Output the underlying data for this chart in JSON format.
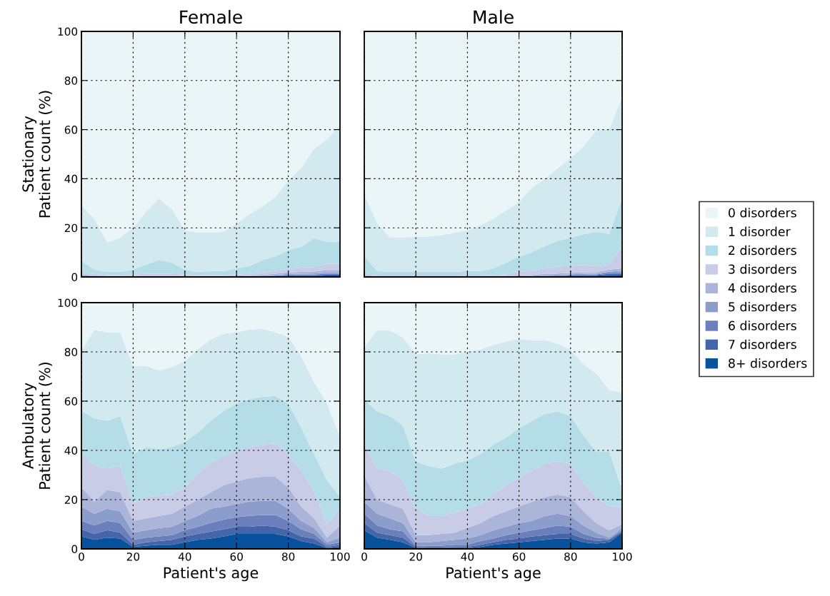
{
  "chart_data": [
    {
      "type": "area",
      "stacked": true,
      "title": "Female",
      "ylabel": "Stationary\nPatient count (%)",
      "tick_labels": "y",
      "grid": true,
      "legend": "right",
      "x": [
        0,
        5,
        10,
        15,
        20,
        25,
        30,
        35,
        40,
        45,
        50,
        55,
        60,
        65,
        70,
        75,
        80,
        85,
        90,
        95,
        100
      ],
      "xlim": [
        0,
        100
      ],
      "xticks": [
        0,
        20,
        40,
        60,
        80,
        100
      ],
      "ylim": [
        0,
        100
      ],
      "yticks": [
        0,
        20,
        40,
        60,
        80,
        100
      ],
      "series": [
        {
          "name": "8+ disorders",
          "color": "#08519c",
          "values": [
            0.3,
            0.1,
            0,
            0,
            0,
            0,
            0,
            0,
            0,
            0,
            0,
            0,
            0,
            0,
            0.1,
            0.3,
            0.5,
            0.5,
            0.5,
            0.6,
            0.6
          ]
        },
        {
          "name": "7 disorders",
          "color": "#4466a8",
          "values": [
            0.1,
            0.1,
            0,
            0,
            0,
            0,
            0,
            0,
            0,
            0,
            0,
            0,
            0,
            0.1,
            0.1,
            0.1,
            0.2,
            0.2,
            0.2,
            0.3,
            0.3
          ]
        },
        {
          "name": "6 disorders",
          "color": "#6a7fbb",
          "values": [
            0.1,
            0.1,
            0.1,
            0.1,
            0.1,
            0.1,
            0.1,
            0.1,
            0.1,
            0.1,
            0.1,
            0.1,
            0.1,
            0.1,
            0.1,
            0.2,
            0.2,
            0.3,
            0.3,
            0.4,
            0.4
          ]
        },
        {
          "name": "5 disorders",
          "color": "#8c9dcc",
          "values": [
            0.2,
            0.1,
            0.1,
            0.1,
            0.1,
            0.1,
            0.1,
            0.1,
            0.1,
            0.1,
            0.1,
            0.1,
            0.1,
            0.2,
            0.2,
            0.2,
            0.3,
            0.3,
            0.4,
            0.5,
            0.5
          ]
        },
        {
          "name": "4 disorders",
          "color": "#abb4d9",
          "values": [
            0.3,
            0.2,
            0.2,
            0.2,
            0.2,
            0.2,
            0.2,
            0.2,
            0.2,
            0.2,
            0.2,
            0.2,
            0.3,
            0.3,
            0.4,
            0.5,
            0.6,
            0.7,
            0.8,
            1,
            1
          ]
        },
        {
          "name": "3 disorders",
          "color": "#c9cce6",
          "values": [
            0.7,
            0.6,
            0.4,
            0.4,
            0.6,
            0.8,
            0.8,
            0.8,
            0.6,
            0.4,
            0.4,
            0.4,
            0.5,
            0.5,
            0.9,
            1.1,
            1.5,
            1.8,
            1.8,
            2.5,
            2.5
          ]
        },
        {
          "name": "2 disorders",
          "color": "#b4dde8",
          "values": [
            4.8,
            1.8,
            1.2,
            1.2,
            2,
            3.8,
            5.6,
            4.6,
            2,
            1.2,
            1.6,
            1.6,
            2.4,
            3.2,
            5,
            6,
            7.6,
            8.5,
            11.7,
            9,
            9
          ]
        },
        {
          "name": "1 disorder",
          "color": "#d1e9ef",
          "values": [
            22.7,
            20.7,
            12,
            14,
            17,
            21.6,
            25.2,
            21.8,
            16,
            16,
            15.6,
            16,
            18.4,
            21.2,
            21.8,
            24.2,
            28.4,
            32,
            36.5,
            41.7,
            47.5
          ]
        },
        {
          "name": "0 disorders",
          "color": "#e9f5f7",
          "values": [
            70.8,
            76.3,
            86,
            84,
            80,
            73.4,
            68,
            72.4,
            81,
            82,
            82,
            81.6,
            78.2,
            74.4,
            71.4,
            67.4,
            60.7,
            55.7,
            47.8,
            44,
            38.2
          ]
        }
      ]
    },
    {
      "type": "area",
      "stacked": true,
      "title": "Male",
      "tick_labels": false,
      "grid": true,
      "x": [
        0,
        5,
        10,
        15,
        20,
        25,
        30,
        35,
        40,
        45,
        50,
        55,
        60,
        65,
        70,
        75,
        80,
        85,
        90,
        95,
        100
      ],
      "xlim": [
        0,
        100
      ],
      "xticks": [
        0,
        20,
        40,
        60,
        80,
        100
      ],
      "ylim": [
        0,
        100
      ],
      "yticks": [
        0,
        20,
        40,
        60,
        80,
        100
      ],
      "series": [
        {
          "color": "#08519c",
          "values": [
            0.3,
            0,
            0,
            0,
            0,
            0,
            0,
            0,
            0,
            0,
            0,
            0,
            0,
            0,
            0.1,
            0.3,
            0.5,
            0.5,
            0.5,
            0.8,
            0.8
          ]
        },
        {
          "color": "#4466a8",
          "values": [
            0.1,
            0,
            0,
            0,
            0,
            0,
            0,
            0,
            0,
            0,
            0,
            0,
            0,
            0.1,
            0.1,
            0.1,
            0.1,
            0.2,
            0.2,
            0.5,
            0.5
          ]
        },
        {
          "color": "#6a7fbb",
          "values": [
            0.1,
            0.1,
            0.1,
            0.1,
            0.1,
            0.1,
            0.1,
            0.1,
            0.1,
            0.1,
            0.1,
            0.1,
            0.1,
            0.1,
            0.2,
            0.2,
            0.2,
            0.2,
            0.3,
            0.5,
            0.6
          ]
        },
        {
          "color": "#8c9dcc",
          "values": [
            0.1,
            0.1,
            0.1,
            0.1,
            0.1,
            0.1,
            0.1,
            0.1,
            0.1,
            0.1,
            0.1,
            0.1,
            0.2,
            0.2,
            0.3,
            0.3,
            0.3,
            0.3,
            0.3,
            0.4,
            0.6
          ]
        },
        {
          "color": "#abb4d9",
          "values": [
            0.2,
            0.1,
            0.1,
            0.1,
            0.1,
            0.1,
            0.1,
            0.1,
            0.1,
            0.1,
            0.1,
            0.2,
            0.3,
            0.4,
            0.5,
            0.5,
            0.6,
            0.7,
            0.6,
            0.8,
            1
          ]
        },
        {
          "color": "#c9cce6",
          "values": [
            0.9,
            0.3,
            0.3,
            0.3,
            0.3,
            0.3,
            0.3,
            0.3,
            0.3,
            0.3,
            0.5,
            0.6,
            1.4,
            1.7,
            2.3,
            2.8,
            2.7,
            3,
            2.4,
            2,
            9
          ]
        },
        {
          "color": "#b4dde8",
          "values": [
            6.7,
            1.8,
            1.4,
            1.4,
            1.4,
            1.4,
            1.4,
            1.4,
            1.8,
            1.8,
            2.6,
            4.8,
            6.2,
            7.5,
            9.1,
            10.5,
            11.5,
            12.5,
            14,
            12.5,
            19.5
          ]
        },
        {
          "color": "#d1e9ef",
          "values": [
            25.2,
            19.4,
            14,
            14,
            14.5,
            14.5,
            15,
            16,
            16.6,
            18.6,
            20.3,
            21.2,
            22.3,
            26.3,
            27.4,
            29.5,
            32.5,
            35.7,
            41.5,
            42.5,
            41.5
          ]
        },
        {
          "color": "#e9f5f7",
          "values": [
            66.4,
            78.2,
            84,
            84,
            83.5,
            83.5,
            83,
            82,
            81,
            79,
            76.3,
            73,
            69.5,
            63.7,
            60,
            55.8,
            51.6,
            46.9,
            40.2,
            40,
            26.5
          ]
        }
      ]
    },
    {
      "type": "area",
      "stacked": true,
      "ylabel": "Ambulatory\nPatient count (%)",
      "xlabel": "Patient's age",
      "grid": true,
      "x": [
        0,
        5,
        10,
        15,
        20,
        25,
        30,
        35,
        40,
        45,
        50,
        55,
        60,
        65,
        70,
        75,
        80,
        85,
        90,
        95,
        100
      ],
      "xlim": [
        0,
        100
      ],
      "xticks": [
        0,
        20,
        40,
        60,
        80,
        100
      ],
      "ylim": [
        0,
        100
      ],
      "yticks": [
        0,
        20,
        40,
        60,
        80,
        100
      ],
      "series": [
        {
          "color": "#08519c",
          "values": [
            5.1,
            3.7,
            4.6,
            4.2,
            0.8,
            1.3,
            1.7,
            1.7,
            2.7,
            3.7,
            4.2,
            5.1,
            6.1,
            6.1,
            6.1,
            6.1,
            5.1,
            3.2,
            2.2,
            0.3,
            0.8
          ]
        },
        {
          "color": "#4466a8",
          "values": [
            2.9,
            2.4,
            3,
            2.4,
            0.9,
            1.4,
            1.5,
            2,
            2.4,
            2.4,
            2.8,
            2.9,
            2.9,
            2.9,
            3.4,
            2.9,
            2.5,
            1.9,
            2,
            0.5,
            0.9
          ]
        },
        {
          "color": "#6a7fbb",
          "values": [
            3.4,
            3.4,
            3.8,
            3.9,
            2,
            1.9,
            1.9,
            1.9,
            2.5,
            2.9,
            3.5,
            3.9,
            3.9,
            4.4,
            4.3,
            4.8,
            3.8,
            2.9,
            1.9,
            0.9,
            1
          ]
        },
        {
          "color": "#8c9dcc",
          "values": [
            5.8,
            4.8,
            4.9,
            4.8,
            2.9,
            3,
            3.4,
            3.4,
            3.8,
            4.4,
            5.8,
            5.3,
            5.3,
            5.8,
            5.8,
            5.8,
            4.9,
            3.4,
            2.4,
            1,
            1.9
          ]
        },
        {
          "color": "#abb4d9",
          "values": [
            7.8,
            4.9,
            7.7,
            7.7,
            4.8,
            4.8,
            4.9,
            5.3,
            5.8,
            6.6,
            6.7,
            8.7,
            9.2,
            9.6,
            9.7,
            9.7,
            8.7,
            5.8,
            3.9,
            1.9,
            4.9
          ]
        },
        {
          "color": "#c9cce6",
          "values": [
            14.5,
            14.5,
            8.7,
            10.7,
            7,
            8.6,
            8.2,
            7.7,
            7.8,
            10.8,
            11.7,
            11.7,
            12.1,
            12.6,
            13.1,
            13.5,
            13.5,
            14.6,
            10.8,
            5.1,
            7.2
          ]
        },
        {
          "color": "#b4dde8",
          "values": [
            16.5,
            19.3,
            19.3,
            20.3,
            20.1,
            20.4,
            18.9,
            19.4,
            18.4,
            16.4,
            17.3,
            18.4,
            19.4,
            19.4,
            19.3,
            19.4,
            20.4,
            17.4,
            15.3,
            18.1,
            4.3
          ]
        },
        {
          "color": "#d1e9ef",
          "values": [
            24.6,
            35.9,
            36,
            34,
            35.8,
            32.9,
            31.9,
            32.5,
            32.9,
            33.8,
            33,
            31.4,
            29.1,
            28.2,
            27.7,
            25.8,
            27.1,
            29,
            29.1,
            31.2,
            24.3
          ]
        },
        {
          "color": "#e9f5f7",
          "values": [
            19.4,
            11.1,
            12,
            12,
            25.7,
            25.7,
            27.6,
            26.1,
            23.7,
            19,
            15,
            12.6,
            12,
            11,
            10.6,
            12,
            14,
            21.8,
            32.4,
            41,
            54.7
          ]
        }
      ]
    },
    {
      "type": "area",
      "stacked": true,
      "xlabel": "Patient's age",
      "tick_labels": "x",
      "grid": true,
      "x": [
        0,
        5,
        10,
        15,
        20,
        25,
        30,
        35,
        40,
        45,
        50,
        55,
        60,
        65,
        70,
        75,
        80,
        85,
        90,
        95,
        100
      ],
      "xlim": [
        0,
        100
      ],
      "xticks": [
        0,
        20,
        40,
        60,
        80,
        100
      ],
      "ylim": [
        0,
        100
      ],
      "yticks": [
        0,
        20,
        40,
        60,
        80,
        100
      ],
      "series": [
        {
          "color": "#08519c",
          "values": [
            7.5,
            4.6,
            3.7,
            2.7,
            0.3,
            0.3,
            0.3,
            0.3,
            0.3,
            0.8,
            1.7,
            2.2,
            2.7,
            3.2,
            3.7,
            4.2,
            4.2,
            2.7,
            2.2,
            2.7,
            6.6
          ]
        },
        {
          "color": "#4466a8",
          "values": [
            2.9,
            2,
            1.9,
            1.9,
            0.5,
            0.3,
            0.3,
            0.5,
            0.5,
            0.9,
            1,
            1.5,
            1.5,
            1.9,
            1.9,
            1.9,
            1.9,
            1.5,
            1,
            1,
            0.5
          ]
        },
        {
          "color": "#6a7fbb",
          "values": [
            3.9,
            2.9,
            2.4,
            2.5,
            0.5,
            0.7,
            0.7,
            0.9,
            0.9,
            1.5,
            1.5,
            1.9,
            2.4,
            2.4,
            2.9,
            3.4,
            2.9,
            1.9,
            1.4,
            0.4,
            0.5
          ]
        },
        {
          "color": "#8c9dcc",
          "values": [
            4.8,
            4.8,
            4.4,
            3.3,
            1.4,
            1.4,
            1.9,
            2,
            2.5,
            2.4,
            3.3,
            3.4,
            3.8,
            3.9,
            4.8,
            4.8,
            4.3,
            3.4,
            2,
            0.5,
            0.9
          ]
        },
        {
          "color": "#abb4d9",
          "values": [
            10.6,
            5.7,
            5.7,
            5.8,
            2.9,
            2.9,
            2.9,
            2.9,
            4.3,
            4.8,
            5.8,
            6.3,
            6.8,
            7.7,
            7.7,
            7.7,
            7.7,
            5.8,
            3.8,
            2.9,
            1.5
          ]
        },
        {
          "color": "#c9cce6",
          "values": [
            12.6,
            12.6,
            13.6,
            11.6,
            10.6,
            7.7,
            7.2,
            8.2,
            7.7,
            7.7,
            8.7,
            10.6,
            11.6,
            12.6,
            13.6,
            13.5,
            13.6,
            11.5,
            10.6,
            9.7,
            7.2
          ]
        },
        {
          "color": "#b4dde8",
          "values": [
            18.3,
            23.2,
            22.2,
            22.2,
            19.3,
            20.3,
            19.3,
            19.8,
            19.8,
            20.3,
            20.3,
            19.3,
            20.2,
            20.2,
            20.2,
            20.3,
            19.3,
            19.3,
            18.4,
            22.2,
            6.7
          ]
        },
        {
          "color": "#d1e9ef",
          "values": [
            21.3,
            33,
            34.9,
            35.7,
            43.5,
            45.8,
            46.4,
            44.4,
            44,
            42.6,
            40.5,
            39.1,
            36.2,
            32.8,
            29.9,
            27.5,
            27,
            29,
            31.8,
            25.1,
            39.6
          ]
        },
        {
          "color": "#e9f5f7",
          "values": [
            18.1,
            11.2,
            11.2,
            14.3,
            21,
            20.6,
            21,
            21,
            20,
            19,
            17.2,
            15.7,
            14.8,
            15.3,
            15.3,
            16.7,
            19.1,
            24.9,
            28.8,
            35.5,
            36.5
          ]
        }
      ]
    }
  ]
}
